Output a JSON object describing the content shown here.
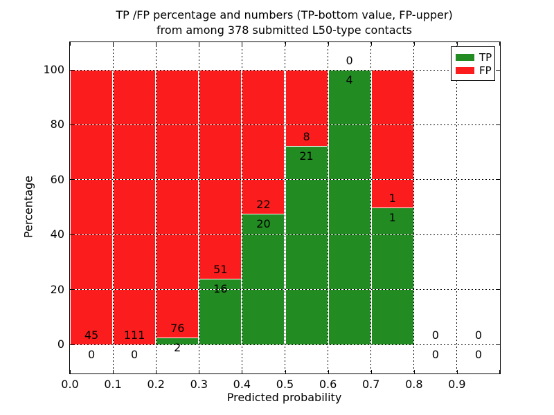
{
  "title": {
    "line1": "TP /FP percentage and numbers (TP-bottom value, FP-upper)",
    "line2": "from among 378 submitted L50-type contacts"
  },
  "axes": {
    "xlabel": "Predicted probability",
    "ylabel": "Percentage",
    "x_tick_labels": [
      "0.0",
      "0.1",
      "0.2",
      "0.3",
      "0.4",
      "0.5",
      "0.6",
      "0.7",
      "0.8",
      "0.9"
    ],
    "y_tick_labels": [
      "0",
      "20",
      "40",
      "60",
      "80",
      "100"
    ],
    "y_tick_values": [
      0,
      20,
      40,
      60,
      80,
      100
    ]
  },
  "legend": {
    "items": [
      {
        "label": "TP",
        "color": "#228b22"
      },
      {
        "label": "FP",
        "color": "#fb1d1d"
      }
    ]
  },
  "chart_data": {
    "type": "bar",
    "stacked": true,
    "title": "TP /FP percentage and numbers (TP-bottom value, FP-upper) from among 378 submitted L50-type contacts",
    "total_submitted": 378,
    "xlabel": "Predicted probability",
    "ylabel": "Percentage",
    "xlim": [
      0.0,
      1.0
    ],
    "ylim_pct": [
      -10,
      110
    ],
    "grid": true,
    "grid_style": "dotted",
    "legend_position": "upper right",
    "bin_width": 0.1,
    "bin_edges": [
      0.0,
      0.1,
      0.2,
      0.3,
      0.4,
      0.5,
      0.6,
      0.7,
      0.8,
      0.9,
      1.0
    ],
    "categories": [
      "0.0-0.1",
      "0.1-0.2",
      "0.2-0.3",
      "0.3-0.4",
      "0.4-0.5",
      "0.5-0.6",
      "0.6-0.7",
      "0.7-0.8",
      "0.8-0.9",
      "0.9-1.0"
    ],
    "series": [
      {
        "name": "TP",
        "role": "bottom",
        "color": "#228b22",
        "counts": [
          0,
          0,
          2,
          16,
          20,
          21,
          4,
          1,
          0,
          0
        ],
        "pct_of_bin": [
          0,
          0,
          2.6,
          23.9,
          47.6,
          72.4,
          100,
          50,
          0,
          0
        ]
      },
      {
        "name": "FP",
        "role": "upper",
        "color": "#fb1d1d",
        "counts": [
          45,
          111,
          76,
          51,
          22,
          8,
          0,
          1,
          0,
          0
        ],
        "pct_of_bin": [
          100,
          100,
          97.4,
          76.1,
          52.4,
          27.6,
          0,
          50,
          0,
          0
        ]
      }
    ]
  }
}
